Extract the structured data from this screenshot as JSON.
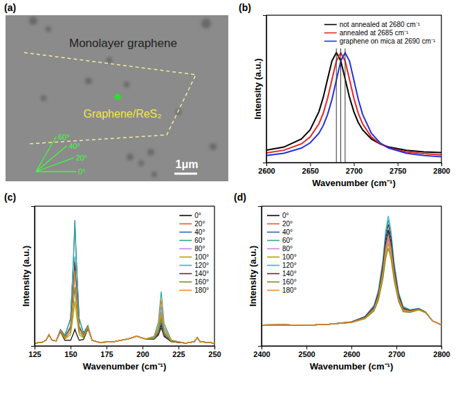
{
  "chart_data": [
    {
      "type": "image",
      "panel": "(a)",
      "title": "Monolayer graphene",
      "region_label": "Graphene/ReS₂",
      "scale_bar": "1μm",
      "angles": [
        {
          "value": 0,
          "label": "0°"
        },
        {
          "value": 20,
          "label": "20°"
        },
        {
          "value": 40,
          "label": "40°"
        },
        {
          "value": 60,
          "label": "60°"
        }
      ]
    },
    {
      "type": "line",
      "panel": "(b)",
      "x_label": "Wavenumber (cm⁻¹)",
      "y_label": "Intensity (a.u.)",
      "x": [
        2600,
        2620,
        2640,
        2650,
        2660,
        2665,
        2670,
        2675,
        2680,
        2685,
        2690,
        2695,
        2700,
        2705,
        2710,
        2720,
        2730,
        2740,
        2760,
        2780,
        2800
      ],
      "series": [
        {
          "name": "not annealed at 2680 cm⁻¹",
          "color": "#000000",
          "values": [
            0.109,
            0.137,
            0.208,
            0.289,
            0.448,
            0.576,
            0.739,
            0.898,
            0.97,
            0.898,
            0.739,
            0.576,
            0.448,
            0.354,
            0.289,
            0.208,
            0.164,
            0.137,
            0.109,
            0.095,
            0.088
          ]
        },
        {
          "name": "annealed at 2685 cm⁻¹",
          "color": "#e8231f",
          "values": [
            0.085,
            0.109,
            0.165,
            0.226,
            0.341,
            0.436,
            0.567,
            0.734,
            0.896,
            0.97,
            0.896,
            0.734,
            0.567,
            0.436,
            0.341,
            0.226,
            0.165,
            0.13,
            0.095,
            0.079,
            0.069
          ]
        },
        {
          "name": "graphene on mica at 2690 cm⁻¹",
          "color": "#1f2fe0",
          "values": [
            0.062,
            0.083,
            0.128,
            0.174,
            0.258,
            0.327,
            0.425,
            0.558,
            0.728,
            0.895,
            0.97,
            0.895,
            0.728,
            0.558,
            0.425,
            0.258,
            0.174,
            0.128,
            0.083,
            0.062,
            0.052
          ]
        }
      ],
      "vlines": [
        2680,
        2685,
        2690
      ],
      "xlim": [
        2600,
        2800
      ],
      "ylim": [
        0,
        1.3
      ],
      "xticks": [
        2600,
        2650,
        2700,
        2750,
        2800
      ],
      "tick_labels": "x",
      "legend": "upper right"
    },
    {
      "type": "line",
      "panel": "(c)",
      "x_label": "Wavenumber (cm⁻¹)",
      "y_label": "Intensity (a.u.)",
      "x": [
        125,
        130,
        133,
        135,
        137,
        140,
        143,
        146,
        150,
        152,
        153,
        154,
        156,
        159,
        162,
        165,
        170,
        180,
        190,
        196,
        202,
        208,
        211,
        213,
        215,
        220,
        230,
        236,
        238,
        240,
        250
      ],
      "series": [
        {
          "name": "0°",
          "color": "#000000",
          "values": [
            0.02,
            0.025,
            0.042,
            0.08,
            0.042,
            0.036,
            0.102,
            0.04,
            0.04,
            0.089,
            0.12,
            0.089,
            0.04,
            0.046,
            0.123,
            0.04,
            0.025,
            0.03,
            0.05,
            0.07,
            0.05,
            0.05,
            0.083,
            0.15,
            0.073,
            0.031,
            0.02,
            0.03,
            0.06,
            0.03,
            0.02
          ]
        },
        {
          "name": "20°",
          "color": "#f0503c",
          "values": [
            0.02,
            0.025,
            0.042,
            0.08,
            0.042,
            0.036,
            0.111,
            0.06,
            0.13,
            0.4,
            0.57,
            0.4,
            0.13,
            0.073,
            0.137,
            0.04,
            0.025,
            0.03,
            0.05,
            0.07,
            0.05,
            0.054,
            0.105,
            0.21,
            0.095,
            0.034,
            0.02,
            0.03,
            0.06,
            0.03,
            0.02
          ]
        },
        {
          "name": "40°",
          "color": "#2a62c9",
          "values": [
            0.02,
            0.025,
            0.042,
            0.08,
            0.042,
            0.036,
            0.118,
            0.075,
            0.196,
            0.627,
            0.9,
            0.627,
            0.196,
            0.093,
            0.146,
            0.04,
            0.025,
            0.03,
            0.05,
            0.07,
            0.05,
            0.051,
            0.09,
            0.17,
            0.08,
            0.032,
            0.02,
            0.03,
            0.06,
            0.03,
            0.02
          ]
        },
        {
          "name": "60°",
          "color": "#2ca58d",
          "values": [
            0.02,
            0.025,
            0.042,
            0.08,
            0.042,
            0.036,
            0.117,
            0.074,
            0.192,
            0.613,
            0.88,
            0.613,
            0.192,
            0.092,
            0.146,
            0.04,
            0.025,
            0.03,
            0.05,
            0.07,
            0.05,
            0.069,
            0.17,
            0.39,
            0.16,
            0.043,
            0.02,
            0.03,
            0.06,
            0.03,
            0.02
          ]
        },
        {
          "name": "80°",
          "color": "#c07ff0",
          "values": [
            0.02,
            0.025,
            0.042,
            0.08,
            0.042,
            0.036,
            0.11,
            0.058,
            0.12,
            0.365,
            0.52,
            0.365,
            0.12,
            0.07,
            0.135,
            0.04,
            0.025,
            0.03,
            0.05,
            0.07,
            0.05,
            0.058,
            0.119,
            0.25,
            0.109,
            0.036,
            0.02,
            0.03,
            0.06,
            0.03,
            0.02
          ]
        },
        {
          "name": "100°",
          "color": "#b3a000",
          "values": [
            0.02,
            0.025,
            0.042,
            0.08,
            0.042,
            0.036,
            0.106,
            0.049,
            0.08,
            0.227,
            0.32,
            0.227,
            0.08,
            0.058,
            0.129,
            0.04,
            0.025,
            0.03,
            0.05,
            0.07,
            0.05,
            0.056,
            0.112,
            0.23,
            0.102,
            0.035,
            0.02,
            0.03,
            0.06,
            0.03,
            0.02
          ]
        },
        {
          "name": "120°",
          "color": "#2cb3d6",
          "values": [
            0.02,
            0.025,
            0.042,
            0.08,
            0.042,
            0.036,
            0.112,
            0.063,
            0.144,
            0.448,
            0.64,
            0.448,
            0.144,
            0.077,
            0.139,
            0.04,
            0.025,
            0.03,
            0.05,
            0.07,
            0.05,
            0.061,
            0.134,
            0.29,
            0.124,
            0.038,
            0.02,
            0.03,
            0.06,
            0.03,
            0.02
          ]
        },
        {
          "name": "140°",
          "color": "#5a2d2d",
          "values": [
            0.02,
            0.025,
            0.042,
            0.08,
            0.042,
            0.036,
            0.112,
            0.062,
            0.136,
            0.42,
            0.6,
            0.42,
            0.136,
            0.075,
            0.137,
            0.04,
            0.025,
            0.03,
            0.05,
            0.07,
            0.05,
            0.048,
            0.076,
            0.13,
            0.066,
            0.03,
            0.02,
            0.03,
            0.06,
            0.03,
            0.02
          ]
        },
        {
          "name": "160°",
          "color": "#7a8a20",
          "values": [
            0.02,
            0.025,
            0.042,
            0.08,
            0.042,
            0.036,
            0.108,
            0.054,
            0.1,
            0.296,
            0.42,
            0.296,
            0.1,
            0.064,
            0.132,
            0.04,
            0.025,
            0.03,
            0.05,
            0.07,
            0.05,
            0.053,
            0.098,
            0.19,
            0.088,
            0.033,
            0.02,
            0.03,
            0.06,
            0.03,
            0.02
          ]
        },
        {
          "name": "180°",
          "color": "#f08a28",
          "values": [
            0.02,
            0.025,
            0.042,
            0.08,
            0.042,
            0.036,
            0.11,
            0.059,
            0.124,
            0.379,
            0.54,
            0.379,
            0.124,
            0.071,
            0.136,
            0.04,
            0.025,
            0.03,
            0.05,
            0.07,
            0.05,
            0.064,
            0.148,
            0.33,
            0.138,
            0.04,
            0.02,
            0.03,
            0.06,
            0.03,
            0.02
          ]
        }
      ],
      "xlim": [
        125,
        250
      ],
      "ylim": [
        0,
        1
      ],
      "xticks": [
        125,
        150,
        175,
        200,
        225,
        250
      ],
      "tick_labels": "x",
      "legend": "upper right"
    },
    {
      "type": "line",
      "panel": "(d)",
      "x_label": "Wavenumber (cm⁻¹)",
      "y_label": "Intensity (a.u.)",
      "x": [
        2400,
        2450,
        2500,
        2550,
        2600,
        2630,
        2650,
        2660,
        2670,
        2676,
        2682,
        2688,
        2695,
        2705,
        2715,
        2730,
        2750,
        2765,
        2780,
        2800
      ],
      "series": [
        {
          "name": "0°",
          "color": "#000000",
          "values": [
            0.15,
            0.152,
            0.148,
            0.155,
            0.17,
            0.204,
            0.272,
            0.368,
            0.558,
            0.735,
            0.83,
            0.735,
            0.538,
            0.354,
            0.266,
            0.251,
            0.264,
            0.24,
            0.18,
            0.15
          ]
        },
        {
          "name": "20°",
          "color": "#f0503c",
          "values": [
            0.15,
            0.152,
            0.148,
            0.155,
            0.169,
            0.2,
            0.262,
            0.348,
            0.522,
            0.683,
            0.77,
            0.683,
            0.503,
            0.336,
            0.255,
            0.246,
            0.261,
            0.239,
            0.18,
            0.15
          ]
        },
        {
          "name": "40°",
          "color": "#2a62c9",
          "values": [
            0.15,
            0.152,
            0.148,
            0.155,
            0.17,
            0.203,
            0.269,
            0.361,
            0.546,
            0.718,
            0.81,
            0.718,
            0.526,
            0.348,
            0.262,
            0.249,
            0.263,
            0.24,
            0.18,
            0.15
          ]
        },
        {
          "name": "60°",
          "color": "#2ca58d",
          "values": [
            0.15,
            0.152,
            0.148,
            0.155,
            0.173,
            0.21,
            0.285,
            0.39,
            0.6,
            0.795,
            0.9,
            0.795,
            0.578,
            0.375,
            0.278,
            0.258,
            0.268,
            0.243,
            0.18,
            0.15
          ]
        },
        {
          "name": "80°",
          "color": "#c07ff0",
          "values": [
            0.15,
            0.152,
            0.148,
            0.155,
            0.168,
            0.198,
            0.258,
            0.342,
            0.51,
            0.666,
            0.75,
            0.666,
            0.492,
            0.33,
            0.252,
            0.244,
            0.26,
            0.238,
            0.18,
            0.15
          ]
        },
        {
          "name": "100°",
          "color": "#b3a000",
          "values": [
            0.15,
            0.152,
            0.148,
            0.155,
            0.167,
            0.196,
            0.254,
            0.336,
            0.498,
            0.649,
            0.73,
            0.649,
            0.481,
            0.324,
            0.249,
            0.242,
            0.259,
            0.237,
            0.18,
            0.15
          ]
        },
        {
          "name": "120°",
          "color": "#2cb3d6",
          "values": [
            0.15,
            0.152,
            0.148,
            0.155,
            0.173,
            0.212,
            0.29,
            0.4,
            0.618,
            0.821,
            0.93,
            0.821,
            0.595,
            0.384,
            0.283,
            0.26,
            0.269,
            0.243,
            0.18,
            0.15
          ]
        },
        {
          "name": "140°",
          "color": "#5a2d2d",
          "values": [
            0.15,
            0.152,
            0.148,
            0.155,
            0.172,
            0.208,
            0.28,
            0.38,
            0.582,
            0.769,
            0.87,
            0.769,
            0.56,
            0.366,
            0.272,
            0.255,
            0.266,
            0.242,
            0.18,
            0.15
          ]
        },
        {
          "name": "160°",
          "color": "#7a8a20",
          "values": [
            0.15,
            0.152,
            0.148,
            0.155,
            0.167,
            0.194,
            0.249,
            0.326,
            0.48,
            0.623,
            0.7,
            0.623,
            0.464,
            0.315,
            0.244,
            0.24,
            0.258,
            0.237,
            0.18,
            0.15
          ]
        },
        {
          "name": "180°",
          "color": "#f08a28",
          "values": [
            0.15,
            0.152,
            0.148,
            0.155,
            0.169,
            0.201,
            0.265,
            0.355,
            0.534,
            0.7,
            0.79,
            0.7,
            0.515,
            0.342,
            0.259,
            0.248,
            0.262,
            0.239,
            0.18,
            0.15
          ]
        }
      ],
      "xlim": [
        2400,
        2800
      ],
      "ylim": [
        0,
        1
      ],
      "xticks": [
        2400,
        2500,
        2600,
        2700,
        2800
      ],
      "tick_labels": "x",
      "legend": "upper left"
    }
  ]
}
